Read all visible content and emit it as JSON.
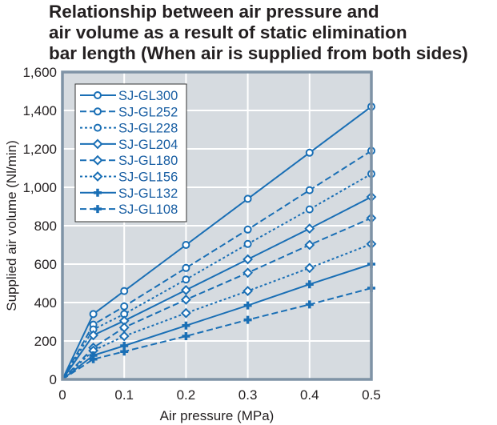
{
  "chart_data": {
    "type": "line",
    "title": "Relationship between air pressure and air volume as a result of static elimination bar length (When air is supplied from both sides)",
    "title_lines": [
      "Relationship between air pressure and",
      "air volume as a result of static elimination",
      "bar length (When air is supplied from both sides)"
    ],
    "xlabel": "Air pressure (MPa)",
    "ylabel": "Supplied air volume (Nl/min)",
    "xlim": [
      0,
      0.5
    ],
    "ylim": [
      0,
      1600
    ],
    "xticks": [
      "0",
      "0.1",
      "0.2",
      "0.3",
      "0.4",
      "0.5"
    ],
    "xtick_values": [
      0,
      0.1,
      0.2,
      0.3,
      0.4,
      0.5
    ],
    "yticks": [
      "0",
      "200",
      "400",
      "600",
      "800",
      "1,000",
      "1,200",
      "1,400",
      "1,600"
    ],
    "ytick_values": [
      0,
      200,
      400,
      600,
      800,
      1000,
      1200,
      1400,
      1600
    ],
    "grid": true,
    "legend_position": "upper-left-inside",
    "x": [
      0,
      0.05,
      0.1,
      0.2,
      0.3,
      0.4,
      0.5
    ],
    "series": [
      {
        "name": "SJ-GL300",
        "marker": "circle",
        "line": "solid",
        "values": [
          0,
          340,
          460,
          700,
          940,
          1180,
          1420
        ]
      },
      {
        "name": "SJ-GL252",
        "marker": "circle",
        "line": "dashed",
        "values": [
          0,
          285,
          380,
          580,
          780,
          985,
          1190
        ]
      },
      {
        "name": "SJ-GL228",
        "marker": "circle",
        "line": "dotted",
        "values": [
          0,
          260,
          340,
          520,
          705,
          885,
          1070
        ]
      },
      {
        "name": "SJ-GL204",
        "marker": "diamond",
        "line": "solid",
        "values": [
          0,
          230,
          305,
          465,
          625,
          785,
          950
        ]
      },
      {
        "name": "SJ-GL180",
        "marker": "diamond",
        "line": "dashed",
        "values": [
          0,
          165,
          270,
          415,
          555,
          700,
          840
        ]
      },
      {
        "name": "SJ-GL156",
        "marker": "diamond",
        "line": "dotted",
        "values": [
          0,
          150,
          225,
          345,
          460,
          580,
          705
        ]
      },
      {
        "name": "SJ-GL132",
        "marker": "cross",
        "line": "solid",
        "values": [
          0,
          125,
          175,
          280,
          385,
          495,
          600
        ]
      },
      {
        "name": "SJ-GL108",
        "marker": "cross",
        "line": "dashed",
        "values": [
          0,
          105,
          145,
          225,
          310,
          390,
          475
        ]
      }
    ]
  },
  "colors": {
    "series": "#1a6fb5",
    "legend_text": "#1a5fa3",
    "plot_background": "#d6dbe0",
    "frame": "#7f93a6",
    "grid": "#ffffff"
  }
}
